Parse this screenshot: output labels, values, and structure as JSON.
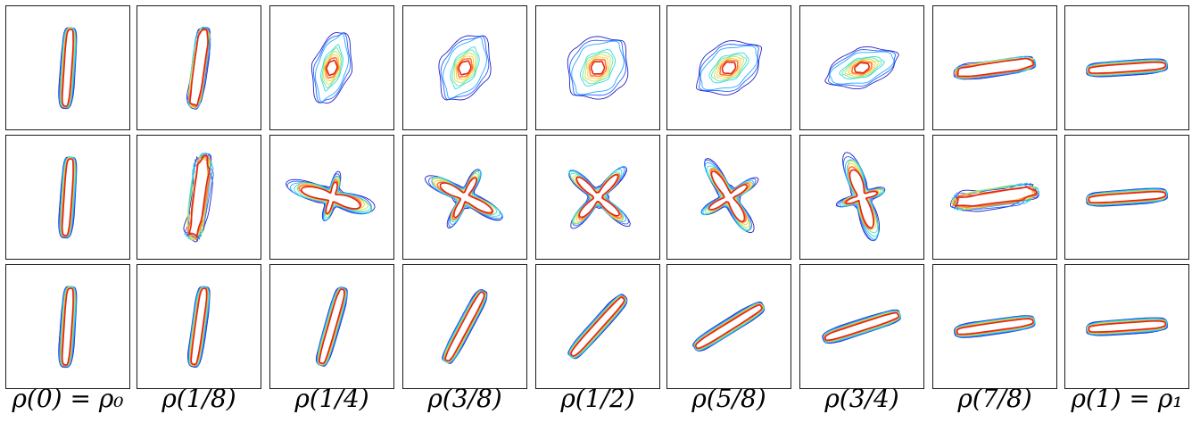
{
  "figure": {
    "captions": [
      "ρ(0) = ρ₀",
      "ρ(1/8)",
      "ρ(1/4)",
      "ρ(3/8)",
      "ρ(1/2)",
      "ρ(5/8)",
      "ρ(3/4)",
      "ρ(7/8)",
      "ρ(1) = ρ₁"
    ],
    "rows": [
      {
        "name": "row-1",
        "times": [
          0,
          0.125,
          0.25,
          0.375,
          0.5,
          0.625,
          0.75,
          0.875,
          1
        ]
      },
      {
        "name": "row-2",
        "times": [
          0,
          0.125,
          0.25,
          0.375,
          0.5,
          0.625,
          0.75,
          0.875,
          1
        ]
      },
      {
        "name": "row-3",
        "times": [
          0,
          0.125,
          0.25,
          0.375,
          0.5,
          0.625,
          0.75,
          0.875,
          1
        ]
      }
    ],
    "contour_colors": [
      "#1f1fbf",
      "#2a5cff",
      "#22a9ff",
      "#30d8e6",
      "#66e39a",
      "#c9e24a",
      "#ffc43a",
      "#ff7a2a",
      "#e0261b"
    ]
  }
}
